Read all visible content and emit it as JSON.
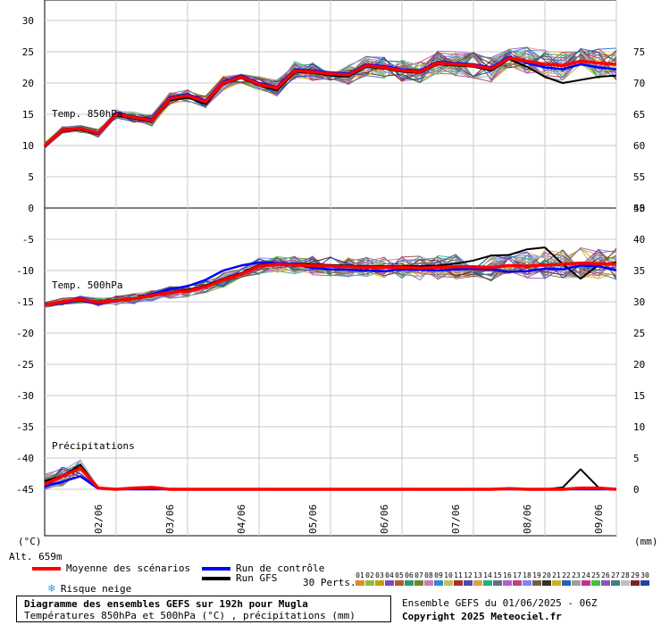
{
  "chart_data": {
    "type": "line",
    "title": "Diagramme des ensembles GEFS sur 192h pour Mugla",
    "subtitle": "Températures 850hPa et 500hPa (°C) , précipitations (mm)",
    "x_ticks": [
      "02/06",
      "03/06",
      "04/06",
      "05/06",
      "06/06",
      "07/06",
      "08/06",
      "09/06"
    ],
    "x_hours": [
      0,
      6,
      12,
      18,
      24,
      30,
      36,
      42,
      48,
      54,
      60,
      66,
      72,
      78,
      84,
      90,
      96,
      102,
      108,
      114,
      120,
      126,
      132,
      138,
      144,
      150,
      156,
      162,
      168,
      174,
      180,
      186,
      192
    ],
    "left_axis_label": "(°C)",
    "right_axis_label": "(mm)",
    "left_ticks": [
      "30",
      "25",
      "20",
      "15",
      "10",
      "5",
      "0",
      "-5",
      "-10",
      "-15",
      "-20",
      "-25",
      "-30",
      "-35",
      "-40",
      "-45"
    ],
    "right_ticks_top": [
      "75",
      "70",
      "65",
      "60",
      "55",
      "50"
    ],
    "right_ticks_bottom": [
      "45",
      "40",
      "35",
      "30",
      "25",
      "20",
      "15",
      "10",
      "5",
      "0"
    ],
    "panels": [
      {
        "label": "Temp. 850hPa",
        "ylim": [
          0,
          30
        ],
        "series": [
          {
            "name": "Moyenne des scénarios",
            "color": "#ff0000",
            "values": [
              10,
              12.5,
              12.7,
              12,
              15,
              14.5,
              14,
              17.5,
              18,
              17,
              20,
              21,
              19.8,
              19.2,
              22,
              21.8,
              21.5,
              21.3,
              22.8,
              22.5,
              22,
              21.8,
              23.2,
              23,
              22.8,
              22.3,
              24,
              23.5,
              23,
              22.8,
              23.5,
              23.2,
              23
            ]
          },
          {
            "name": "Run de contrôle",
            "color": "#0000ff",
            "values": [
              10,
              12.6,
              12.8,
              12.1,
              15.2,
              14.6,
              14.2,
              17.7,
              18.2,
              17.2,
              20.2,
              21.2,
              20,
              19.4,
              22.2,
              22,
              21.7,
              21.5,
              23,
              22.7,
              22.2,
              22,
              23.4,
              23.2,
              23,
              22.5,
              24.2,
              23.2,
              22.5,
              22.2,
              23,
              22.5,
              22.2
            ]
          },
          {
            "name": "Run GFS",
            "color": "#000000",
            "values": [
              9.8,
              12.3,
              12.5,
              11.8,
              14.8,
              14.3,
              13.8,
              17.2,
              17.7,
              16.6,
              19.8,
              20.8,
              19.6,
              18.8,
              21.8,
              21.6,
              21.2,
              21,
              22.6,
              22.3,
              21.8,
              21.6,
              23,
              22.8,
              22.6,
              22,
              23.8,
              22.6,
              21,
              20,
              20.5,
              21,
              21.2
            ]
          }
        ]
      },
      {
        "label": "Temp. 500hPa",
        "ylim": [
          -45,
          0
        ],
        "series": [
          {
            "name": "Moyenne des scénarios",
            "color": "#ff0000",
            "values": [
              -15.5,
              -15,
              -14.6,
              -15.1,
              -14.8,
              -14.5,
              -14,
              -13.5,
              -13.3,
              -12.6,
              -11.5,
              -10.6,
              -9.3,
              -9,
              -9.1,
              -9.2,
              -9.3,
              -9.4,
              -9.5,
              -9.5,
              -9.5,
              -9.6,
              -9.5,
              -9.4,
              -9.4,
              -9.5,
              -9.2,
              -9.3,
              -9.1,
              -9,
              -8.8,
              -8.9,
              -9
            ]
          },
          {
            "name": "Run de contrôle",
            "color": "#0000ff",
            "values": [
              -15.6,
              -15.1,
              -14.8,
              -15.3,
              -14.9,
              -14.4,
              -13.8,
              -13,
              -12.5,
              -11.5,
              -10,
              -9.2,
              -8.7,
              -8.8,
              -9,
              -9.6,
              -9.8,
              -9.9,
              -10,
              -10.1,
              -9.8,
              -9.9,
              -10,
              -9.8,
              -9.7,
              -9.8,
              -10.2,
              -10.1,
              -9.7,
              -9.8,
              -9.2,
              -9.3,
              -10
            ]
          },
          {
            "name": "Run GFS",
            "color": "#000000",
            "values": [
              -15.4,
              -14.9,
              -14.5,
              -15,
              -14.7,
              -14.4,
              -13.9,
              -13.4,
              -13.1,
              -12.4,
              -11.3,
              -10.4,
              -9.1,
              -8.8,
              -8.9,
              -9,
              -9.1,
              -9.2,
              -9.3,
              -9.3,
              -9.3,
              -9.3,
              -9.2,
              -8.9,
              -8.4,
              -7.6,
              -7.5,
              -6.6,
              -6.3,
              -9,
              -11.3,
              -9.1,
              -8.7
            ]
          }
        ]
      },
      {
        "label": "Précipitations",
        "ylim": [
          0,
          45
        ],
        "series": [
          {
            "name": "Moyenne des scénarios",
            "color": "#ff0000",
            "values": [
              0.8,
              2.1,
              3.4,
              0.2,
              0,
              0.2,
              0.3,
              0,
              0,
              0,
              0,
              0,
              0,
              0,
              0,
              0,
              0,
              0,
              0,
              0,
              0,
              0,
              0,
              0,
              0,
              0,
              0.1,
              0,
              0,
              0,
              0.2,
              0.2,
              0
            ]
          },
          {
            "name": "Run de contrôle",
            "color": "#0000ff",
            "values": [
              0.5,
              1.2,
              2.1,
              0.1,
              0,
              0,
              0,
              0,
              0,
              0,
              0,
              0,
              0,
              0,
              0,
              0,
              0,
              0,
              0,
              0,
              0,
              0,
              0,
              0,
              0,
              0,
              0,
              0,
              0,
              0,
              0,
              0,
              0
            ]
          },
          {
            "name": "Run GFS",
            "color": "#000000",
            "values": [
              1.3,
              2.2,
              3.9,
              0.2,
              0,
              0,
              0,
              0,
              0,
              0,
              0,
              0,
              0,
              0,
              0,
              0,
              0,
              0,
              0,
              0,
              0,
              0,
              0,
              0,
              0,
              0,
              0,
              0,
              0,
              0.3,
              3.2,
              0.3,
              0
            ]
          }
        ]
      }
    ],
    "grid": true
  },
  "footer": {
    "altitude": "Alt. 659m",
    "legend_mean": "Moyenne des scénarios",
    "legend_control": "Run de contrôle",
    "legend_gfs": "Run GFS",
    "legend_snow": "Risque neige",
    "perts_label": "30 Perts.",
    "perts_numbers": [
      "01",
      "02",
      "03",
      "04",
      "05",
      "06",
      "07",
      "08",
      "09",
      "10",
      "11",
      "12",
      "13",
      "14",
      "15",
      "16",
      "17",
      "18",
      "19",
      "20",
      "21",
      "22",
      "23",
      "24",
      "25",
      "26",
      "27",
      "28",
      "29",
      "30"
    ],
    "perts_colors": [
      "#e08a2c",
      "#8fbc3a",
      "#c8a000",
      "#7a48c8",
      "#b05a2a",
      "#2a9a6a",
      "#6a8a2a",
      "#d07ab0",
      "#2a8ad0",
      "#c0c060",
      "#aa3030",
      "#4a4aaa",
      "#e0a040",
      "#20b080",
      "#607080",
      "#b060d0",
      "#c04080",
      "#8080ff",
      "#706040",
      "#303030",
      "#d0b020",
      "#2060c0",
      "#a0a0a0",
      "#c03090",
      "#40c040",
      "#9050c0",
      "#408080",
      "#c0c0c0",
      "#802020",
      "#2040a0"
    ],
    "run_info": "Ensemble GEFS du 01/06/2025 - 06Z",
    "copyright": "Copyright 2025 Meteociel.fr"
  }
}
